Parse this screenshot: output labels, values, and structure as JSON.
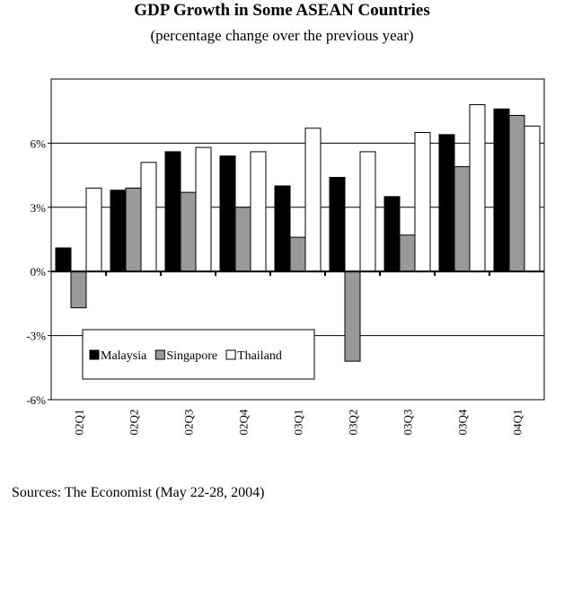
{
  "chart_data": {
    "type": "bar",
    "title": "GDP Growth in Some ASEAN Countries",
    "subtitle": "(percentage change over the previous year)",
    "source": "Sources: The Economist (May 22-28, 2004)",
    "categories": [
      "02Q1",
      "02Q2",
      "02Q3",
      "02Q4",
      "03Q1",
      "03Q2",
      "03Q3",
      "03Q4",
      "04Q1"
    ],
    "series": [
      {
        "name": "Malaysia",
        "color": "#000000",
        "values": [
          1.1,
          3.8,
          5.6,
          5.4,
          4.0,
          4.4,
          3.5,
          6.4,
          7.6
        ]
      },
      {
        "name": "Singapore",
        "color": "#999999",
        "values": [
          -1.7,
          3.9,
          3.7,
          3.0,
          1.6,
          -4.2,
          1.7,
          4.9,
          7.3
        ]
      },
      {
        "name": "Thailand",
        "color": "#ffffff",
        "values": [
          3.9,
          5.1,
          5.8,
          5.6,
          6.7,
          5.6,
          6.5,
          7.8,
          6.8
        ]
      }
    ],
    "ylim": [
      -6,
      9
    ],
    "yticks": [
      {
        "value": -6,
        "label": "-6%"
      },
      {
        "value": -3,
        "label": "-3%"
      },
      {
        "value": 0,
        "label": "0%"
      },
      {
        "value": 3,
        "label": "3%"
      },
      {
        "value": 6,
        "label": "6%"
      }
    ],
    "grid": true,
    "legend": "lower left"
  }
}
